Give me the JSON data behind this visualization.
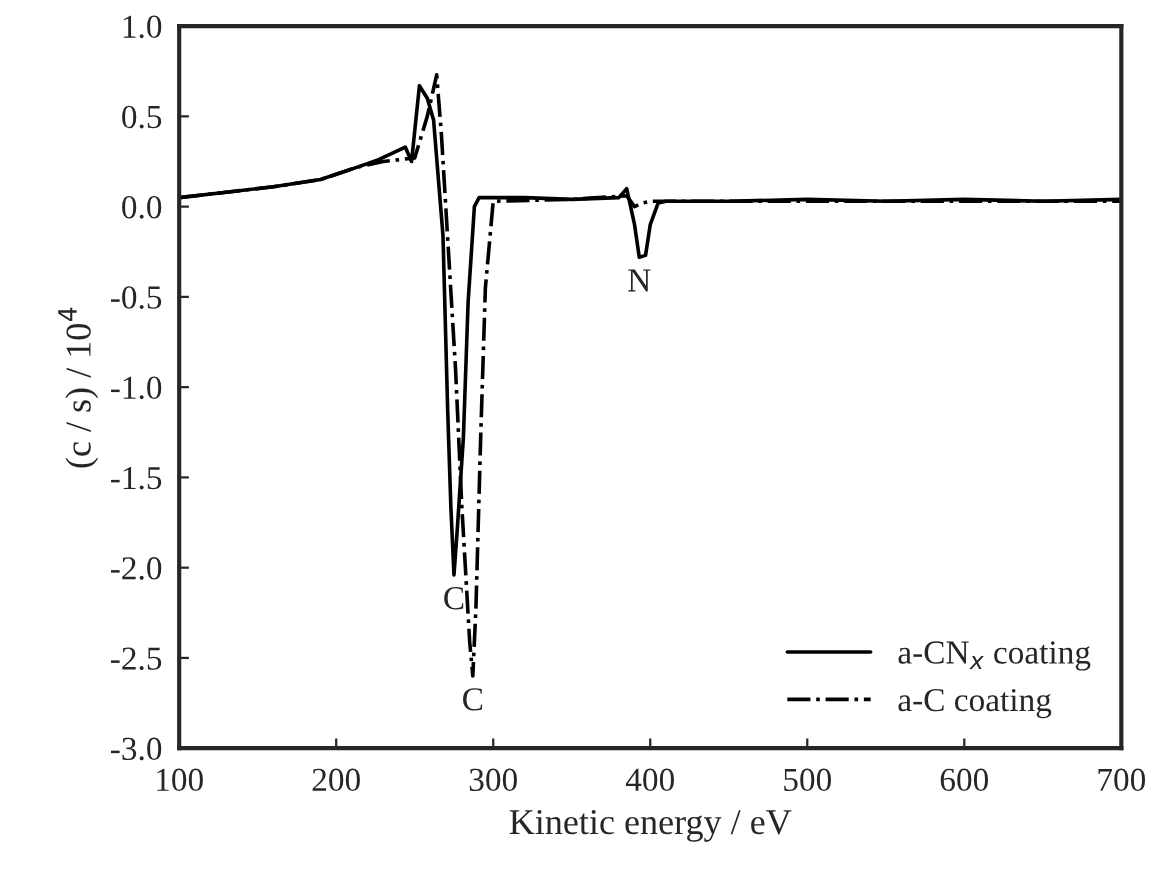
{
  "chart_data": {
    "type": "line",
    "xlabel": "Kinetic energy / eV",
    "ylabel": "(c / s) / 10$^{4}$",
    "xlim": [
      100,
      700
    ],
    "xticks": [
      100,
      200,
      300,
      400,
      500,
      600,
      700
    ],
    "ylim": [
      -3.0,
      1.0
    ],
    "yticks": [
      {
        "value": -3.0,
        "label": "-3.0"
      },
      {
        "value": -2.5,
        "label": "-2.5"
      },
      {
        "value": -2.0,
        "label": "-2.0"
      },
      {
        "value": -1.5,
        "label": "-1.5"
      },
      {
        "value": -1.0,
        "label": "-1.0"
      },
      {
        "value": -0.5,
        "label": "-0.5"
      },
      {
        "value": 0.0,
        "label": "0.0"
      },
      {
        "value": 0.5,
        "label": "0.5"
      },
      {
        "value": 1.0,
        "label": "1.0"
      }
    ],
    "grid": false,
    "legend": "bottom right",
    "series": [
      {
        "name": "a-CN$_{x}$ coating",
        "color": "#000000",
        "line_style": "solid",
        "x": [
          100,
          130,
          160,
          190,
          214,
          227,
          244,
          248,
          253,
          258,
          262,
          268,
          271,
          273,
          275,
          277,
          281,
          284,
          288,
          291,
          320,
          350,
          380,
          385,
          390,
          393,
          397,
          400,
          405,
          410,
          450,
          500,
          550,
          600,
          650,
          700
        ],
        "values": [
          0.05,
          0.08,
          0.11,
          0.15,
          0.22,
          0.26,
          0.33,
          0.25,
          0.67,
          0.6,
          0.48,
          -0.16,
          -1.13,
          -1.66,
          -2.04,
          -1.8,
          -1.28,
          -0.53,
          0.0,
          0.05,
          0.05,
          0.04,
          0.05,
          0.1,
          -0.1,
          -0.28,
          -0.27,
          -0.1,
          0.02,
          0.03,
          0.03,
          0.04,
          0.03,
          0.04,
          0.03,
          0.04
        ]
      },
      {
        "name": "a-C coating",
        "color": "#000000",
        "line_style": "dashdot",
        "x": [
          100,
          130,
          160,
          190,
          214,
          230,
          250,
          258,
          264,
          267,
          276,
          280,
          285,
          287,
          289,
          292,
          295,
          300,
          350,
          385,
          390,
          395,
          400,
          450,
          500,
          550,
          600,
          650,
          700
        ],
        "values": [
          0.05,
          0.08,
          0.11,
          0.15,
          0.22,
          0.25,
          0.27,
          0.5,
          0.73,
          0.4,
          -0.9,
          -1.66,
          -2.41,
          -2.6,
          -2.22,
          -1.28,
          -0.45,
          0.03,
          0.04,
          0.06,
          0.0,
          0.02,
          0.03,
          0.03,
          0.03,
          0.03,
          0.03,
          0.03,
          0.03
        ]
      }
    ],
    "annotations": [
      {
        "text": "C",
        "x": 275,
        "y": -2.04
      },
      {
        "text": "C",
        "x": 287,
        "y": -2.6
      },
      {
        "text": "N",
        "x": 393,
        "y": -0.28
      }
    ]
  }
}
